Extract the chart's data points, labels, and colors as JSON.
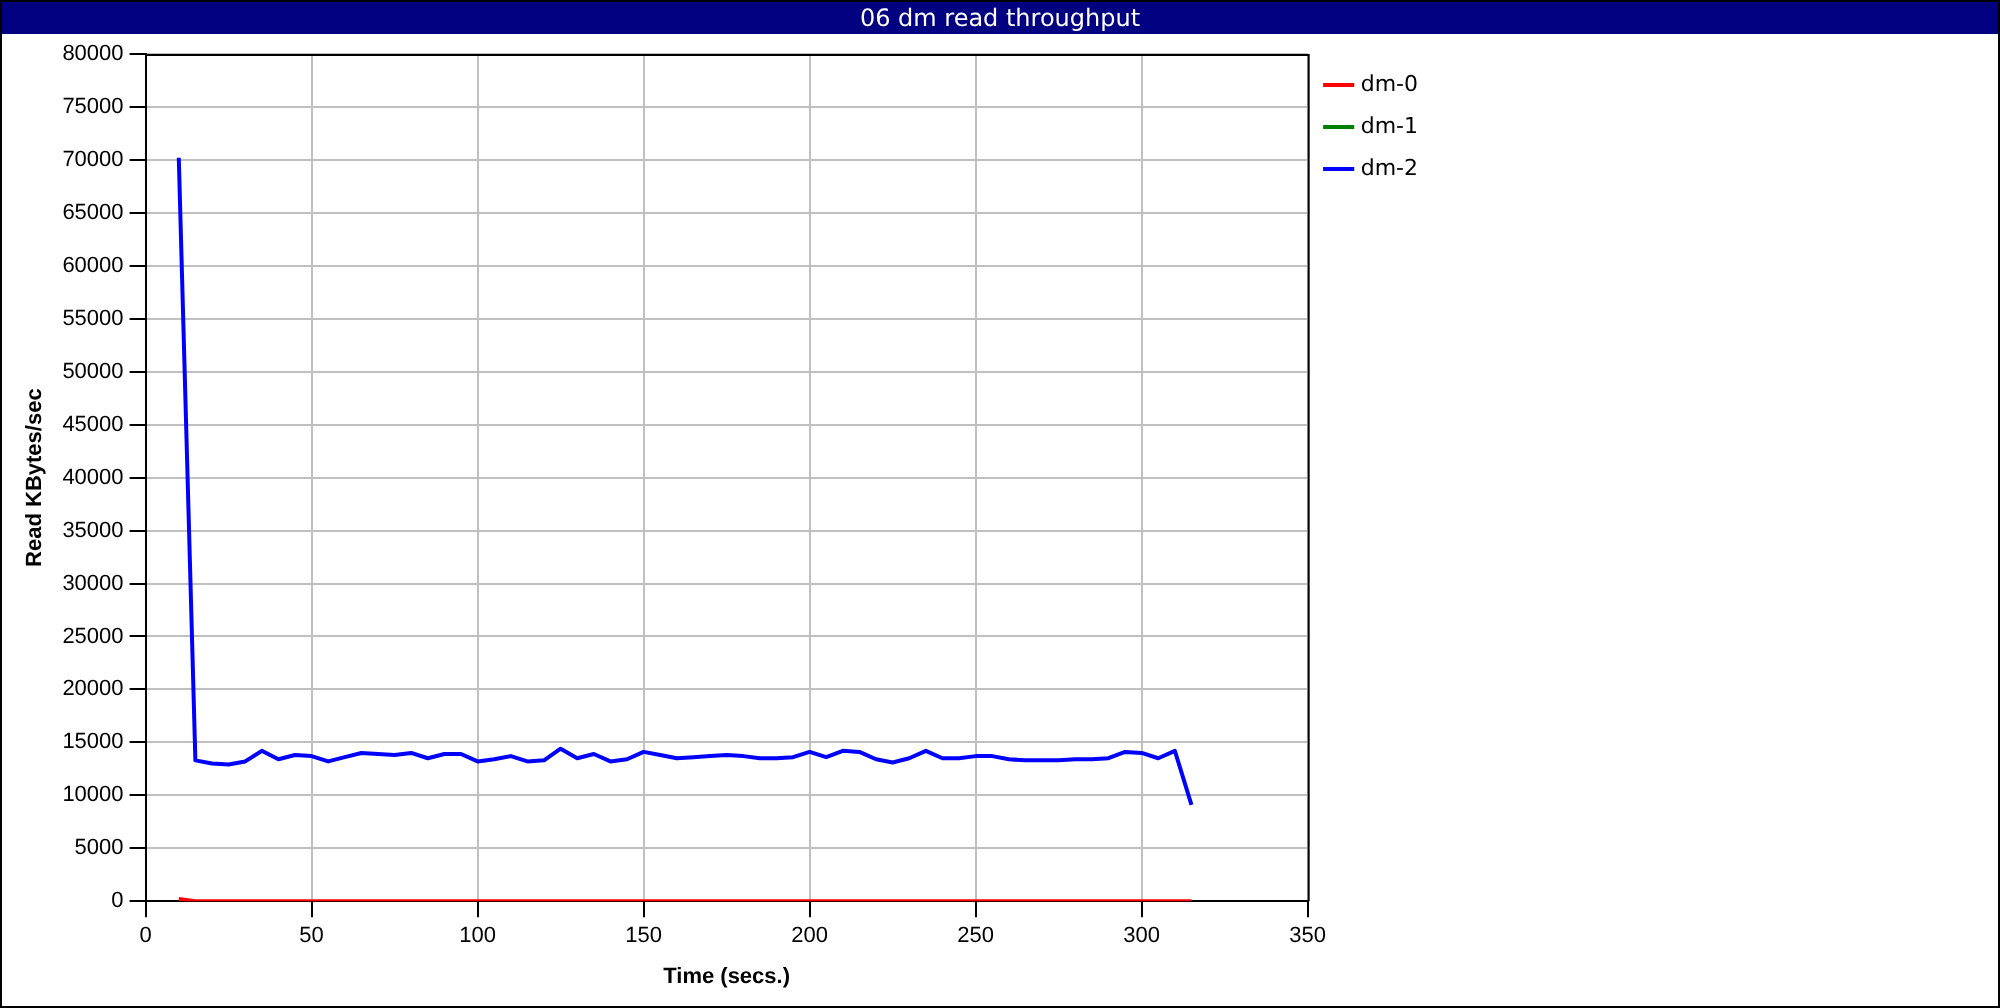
{
  "chart_data": {
    "type": "line",
    "title": "06 dm read throughput",
    "xlabel": "Time (secs.)",
    "ylabel": "Read KBytes/sec",
    "x": [
      10,
      15,
      20,
      25,
      30,
      35,
      40,
      45,
      50,
      55,
      60,
      65,
      70,
      75,
      80,
      85,
      90,
      95,
      100,
      105,
      110,
      115,
      120,
      125,
      130,
      135,
      140,
      145,
      150,
      155,
      160,
      165,
      170,
      175,
      180,
      185,
      190,
      195,
      200,
      205,
      210,
      215,
      220,
      225,
      230,
      235,
      240,
      245,
      250,
      255,
      260,
      265,
      270,
      275,
      280,
      285,
      290,
      295,
      300,
      305,
      310,
      315
    ],
    "series": [
      {
        "name": "dm-0",
        "color": "#ff0000",
        "values": [
          200,
          0,
          0,
          0,
          0,
          0,
          0,
          0,
          0,
          0,
          0,
          0,
          0,
          0,
          0,
          0,
          0,
          0,
          0,
          0,
          0,
          0,
          0,
          0,
          0,
          0,
          0,
          0,
          0,
          0,
          0,
          0,
          0,
          0,
          0,
          0,
          0,
          0,
          0,
          0,
          0,
          0,
          0,
          0,
          0,
          0,
          0,
          0,
          0,
          0,
          0,
          0,
          0,
          0,
          0,
          0,
          0,
          0,
          0,
          0,
          0,
          0
        ]
      },
      {
        "name": "dm-1",
        "color": "#008000",
        "values": [
          null,
          null,
          null,
          null,
          null,
          null,
          null,
          null,
          null,
          null,
          null,
          null,
          null,
          null,
          null,
          null,
          null,
          null,
          null,
          null,
          null,
          null,
          null,
          null,
          null,
          null,
          null,
          null,
          null,
          null,
          null,
          null,
          null,
          null,
          null,
          null,
          null,
          null,
          null,
          null,
          null,
          null,
          null,
          null,
          null,
          null,
          null,
          null,
          null,
          null,
          null,
          null,
          null,
          null,
          null,
          null,
          null,
          null,
          null,
          null,
          null,
          null
        ]
      },
      {
        "name": "dm-2",
        "color": "#0000ff",
        "values": [
          70200,
          13300,
          13000,
          12900,
          13200,
          14200,
          13400,
          13800,
          13700,
          13200,
          13600,
          14000,
          13900,
          13800,
          14000,
          13500,
          13900,
          13900,
          13200,
          13400,
          13700,
          13200,
          13300,
          14400,
          13500,
          13900,
          13200,
          13400,
          14100,
          13800,
          13500,
          13600,
          13700,
          13800,
          13700,
          13500,
          13500,
          13600,
          14100,
          13600,
          14200,
          14100,
          13400,
          13100,
          13500,
          14200,
          13500,
          13500,
          13700,
          13700,
          13400,
          13300,
          13300,
          13300,
          13400,
          13400,
          13500,
          14100,
          14000,
          13500,
          14200,
          9100
        ]
      }
    ],
    "xlim": [
      0,
      350
    ],
    "xticks": [
      0,
      50,
      100,
      150,
      200,
      250,
      300,
      350
    ],
    "ylim": [
      0,
      80000
    ],
    "yticks": [
      0,
      5000,
      10000,
      15000,
      20000,
      25000,
      30000,
      35000,
      40000,
      45000,
      50000,
      55000,
      60000,
      65000,
      70000,
      75000,
      80000
    ],
    "grid": true,
    "legend": "top right",
    "marker": "none",
    "line_style": "solid"
  }
}
